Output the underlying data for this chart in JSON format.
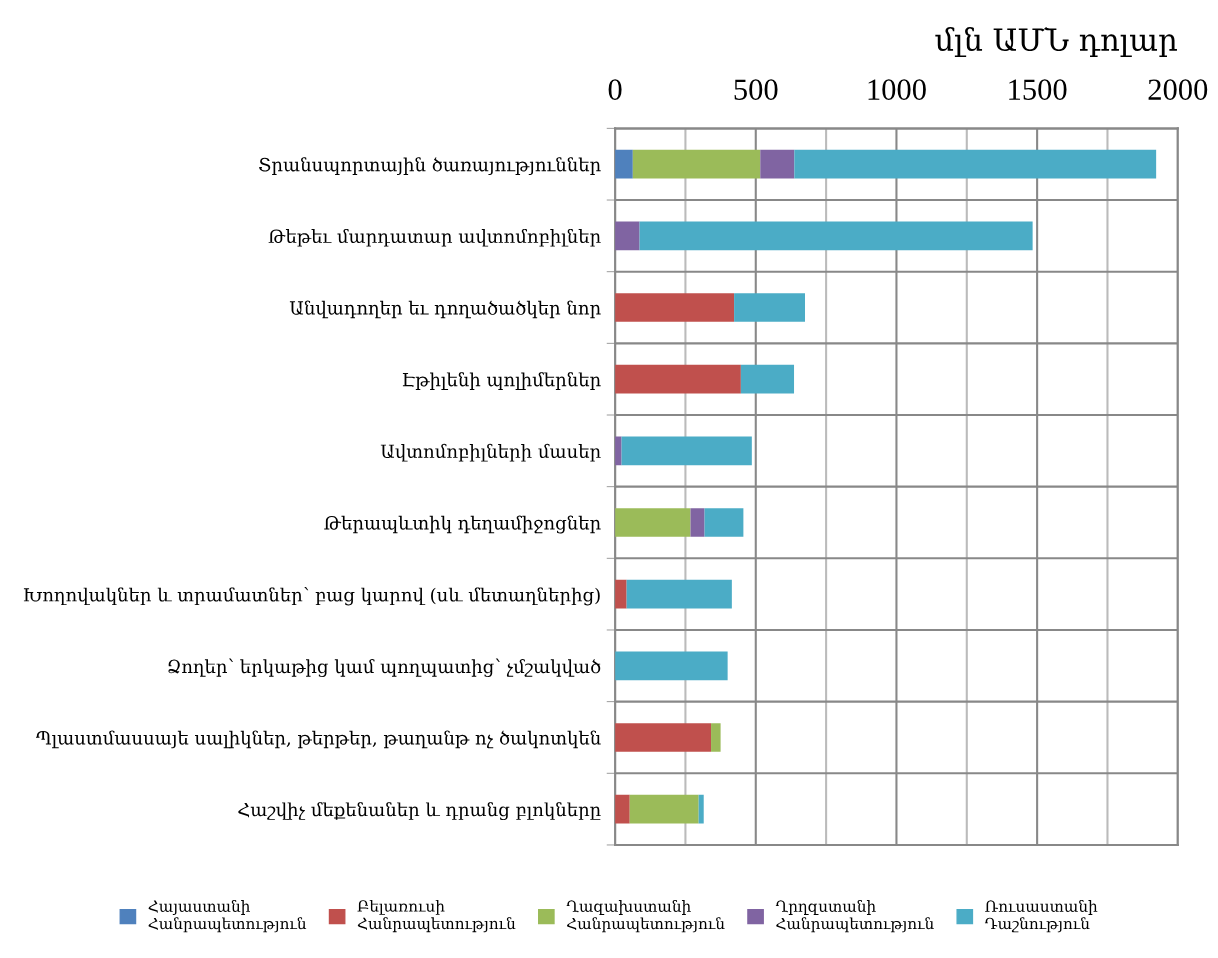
{
  "chart_data": {
    "type": "bar",
    "orientation": "horizontal",
    "stacked": true,
    "xlabel": "մլն ԱՄՆ դոլար",
    "categories": [
      "Տրանսպորտային ծառայություններ",
      "Թեթեւ մարդատար ավտոմոբիլներ",
      "Անվադողեր եւ դողածածկեր նոր",
      "Էթիլենի պոլիմերներ",
      "Ավտոմոբիլների մասեր",
      "Թերապևտիկ դեղամիջոցներ",
      "Խողովակներ և տրամատներ՝ բաց կարով (սև մետաղներից)",
      "Ձողեր՝ երկաթից կամ պողպատից՝ չմշակված",
      "Պլաստմասսայե սալիկներ, թերթեր, թաղանթ ոչ ծակոտկեն",
      "Հաշվիչ մեքենաներ և դրանց բլոկները"
    ],
    "series": [
      {
        "name": "Հայաստանի Հանրապետություն",
        "color": "#4f81bd",
        "values": [
          63,
          null,
          null,
          null,
          null,
          null,
          null,
          null,
          null,
          null
        ]
      },
      {
        "name": "Բելառուսի Հանրապետություն",
        "color": "#c0504d",
        "values": [
          null,
          null,
          423,
          447,
          null,
          null,
          41,
          null,
          341,
          52
        ]
      },
      {
        "name": "Ղազախստանի Հանրապետություն",
        "color": "#9bbb59",
        "values": [
          453,
          null,
          null,
          null,
          null,
          268,
          null,
          null,
          34,
          245
        ]
      },
      {
        "name": "Ղրղզստանի Հանրապետություն",
        "color": "#8064a2",
        "values": [
          121,
          87,
          null,
          null,
          23,
          50,
          null,
          null,
          null,
          null
        ]
      },
      {
        "name": "Ռուսաստանի Դաշնություն",
        "color": "#4bacc6",
        "values": [
          1286,
          1397,
          252,
          189,
          463,
          138,
          374,
          400,
          null,
          18
        ]
      }
    ],
    "xlim": [
      0,
      2000
    ],
    "xticks": [
      0,
      {
        "value": 250,
        "label": null
      },
      500,
      {
        "value": 750,
        "label": null
      },
      1000,
      {
        "value": 1250,
        "label": null
      },
      1500,
      {
        "value": 1750,
        "label": null
      },
      2000
    ],
    "grid": true,
    "legend": "bottom"
  }
}
